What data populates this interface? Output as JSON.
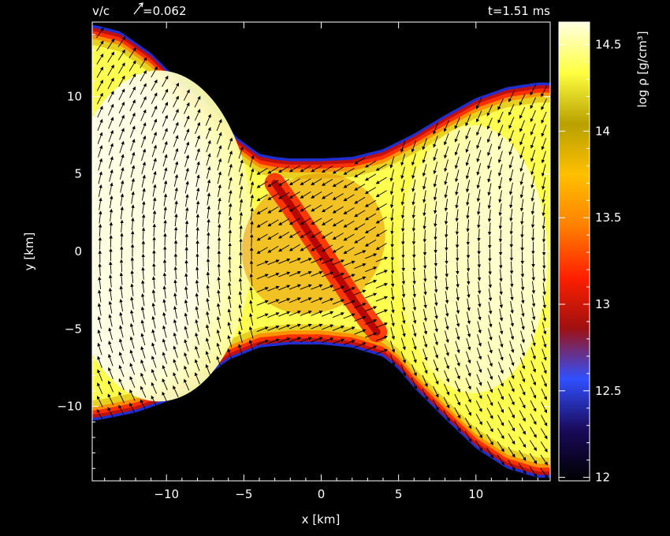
{
  "header": {
    "velocity_prefix": "v/c",
    "velocity_value": "=0.062",
    "time": "t=1.51 ms"
  },
  "chart_data": {
    "type": "heatmap",
    "title": "",
    "xlabel": "x [km]",
    "ylabel": "y [km]",
    "xlim": [
      -14.8,
      14.8
    ],
    "ylim": [
      -14.8,
      14.8
    ],
    "xticks": [
      -10,
      -5,
      0,
      5,
      10
    ],
    "yticks": [
      -10,
      -5,
      0,
      5,
      10
    ],
    "xtick_labels": [
      "−10",
      "−5",
      "0",
      "5",
      "10"
    ],
    "ytick_labels": [
      "−10",
      "−5",
      "0",
      "5",
      "10"
    ],
    "colorbar": {
      "label": "log ρ [g/cm³]",
      "range": [
        11.98,
        14.63
      ],
      "ticks": [
        12,
        12.5,
        13,
        13.5,
        14,
        14.5
      ],
      "tick_labels": [
        "12",
        "12.5",
        "13",
        "13.5",
        "14",
        "14.5"
      ],
      "colormap": [
        "#000000",
        "#1a0a5a",
        "#3050ff",
        "#a01010",
        "#ff2000",
        "#ff8000",
        "#ffc000",
        "#b8a000",
        "#ffff40",
        "#ffffe0"
      ]
    },
    "velocity_reference": 0.062,
    "boundary_top": {
      "x": [
        -14.6,
        -13,
        -11,
        -9,
        -7,
        -5.5,
        -4,
        -3,
        -2,
        0,
        2,
        4,
        6,
        8,
        10,
        12,
        14,
        14.6
      ],
      "y": [
        14.6,
        14.2,
        12.8,
        10.8,
        9.2,
        7.4,
        6.3,
        6.1,
        6.0,
        6.0,
        6.1,
        6.6,
        7.6,
        8.8,
        9.9,
        10.6,
        10.9,
        10.9
      ]
    },
    "boundary_bottom": {
      "x": [
        -14.6,
        -14,
        -12,
        -10,
        -8,
        -6,
        -4,
        -2,
        0,
        2,
        4,
        5,
        6,
        8,
        10,
        12,
        14,
        14.6
      ],
      "y": [
        -10.9,
        -10.8,
        -10.4,
        -9.7,
        -8.5,
        -7.0,
        -6.2,
        -6.0,
        -6.0,
        -6.2,
        -6.8,
        -7.6,
        -8.8,
        -10.8,
        -12.7,
        -14.0,
        -14.6,
        -14.6
      ]
    },
    "low_density_filament": {
      "x": [
        -3.0,
        -2.0,
        -1.0,
        0,
        1.0,
        2.0,
        3.0,
        3.6
      ],
      "y": [
        4.4,
        3.0,
        1.5,
        0.0,
        -1.5,
        -3.0,
        -4.4,
        -5.2
      ]
    }
  }
}
